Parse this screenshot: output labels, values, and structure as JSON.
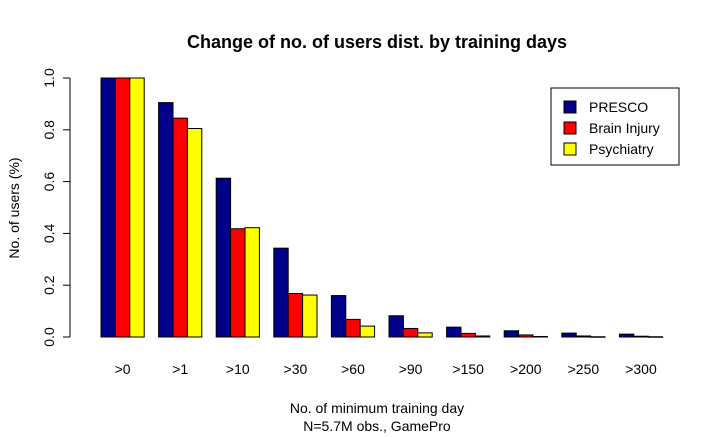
{
  "chart_data": {
    "type": "bar",
    "title": "Change of no. of users dist. by training days",
    "xlabel": "No. of minimum training day",
    "xlabel_line2": "N=5.7M obs., GamePro",
    "ylabel": "No. of users (%)",
    "ylim": [
      0,
      1.0
    ],
    "yticks": [
      "0.0",
      "0.2",
      "0.4",
      "0.6",
      "0.8",
      "1.0"
    ],
    "categories": [
      ">0",
      ">1",
      ">10",
      ">30",
      ">60",
      ">90",
      ">150",
      ">200",
      ">250",
      ">300"
    ],
    "series": [
      {
        "name": "PRESCO",
        "color": "#00008B",
        "values": [
          1.0,
          0.905,
          0.613,
          0.343,
          0.16,
          0.082,
          0.038,
          0.024,
          0.015,
          0.011
        ]
      },
      {
        "name": "Brain Injury",
        "color": "#FF0000",
        "values": [
          1.0,
          0.845,
          0.418,
          0.168,
          0.068,
          0.033,
          0.014,
          0.008,
          0.004,
          0.003
        ]
      },
      {
        "name": "Psychiatry",
        "color": "#FFFF00",
        "values": [
          1.0,
          0.805,
          0.422,
          0.162,
          0.042,
          0.016,
          0.004,
          0.002,
          0.001,
          0.001
        ]
      }
    ],
    "legend_position": "top-right",
    "grid": false
  }
}
